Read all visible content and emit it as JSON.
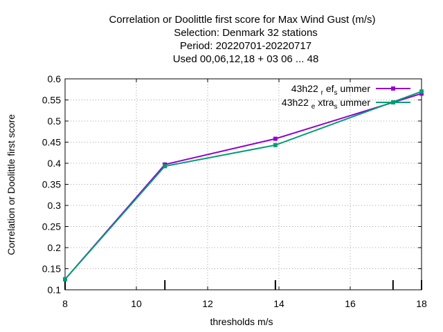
{
  "chart_data": {
    "type": "line",
    "title_lines": [
      "Correlation or Doolittle first score  for Max Wind Gust (m/s)",
      "Selection: Denmark     32 stations",
      "Period: 20220701-20220717",
      "Used  00,06,12,18  + 03 06 ... 48"
    ],
    "xlabel": "thresholds m/s",
    "ylabel": "Correlation or Doolittle first score",
    "xlim": [
      8,
      18
    ],
    "ylim": [
      0.1,
      0.6
    ],
    "x_ticks": [
      "8",
      "10",
      "12",
      "14",
      "16",
      "18"
    ],
    "y_ticks": [
      "0.1",
      "0.15",
      "0.2",
      "0.25",
      "0.3",
      "0.35",
      "0.4",
      "0.45",
      "0.5",
      "0.55",
      "0.6"
    ],
    "grid": true,
    "legend_position": "top-right",
    "threshold_marks": [
      8,
      10.8,
      13.9,
      17.2,
      18
    ],
    "series": [
      {
        "name_main": "43h22",
        "name_parts": [
          [
            "r",
            "ef"
          ],
          [
            "s",
            "ummer"
          ]
        ],
        "color": "#9400d3",
        "x": [
          8,
          10.8,
          13.9,
          18
        ],
        "y": [
          0.125,
          0.397,
          0.458,
          0.565
        ]
      },
      {
        "name_main": "43h22",
        "name_parts": [
          [
            "e",
            "xtra"
          ],
          [
            "s",
            "ummer"
          ]
        ],
        "color": "#009e73",
        "x": [
          8,
          10.8,
          13.9,
          18
        ],
        "y": [
          0.125,
          0.393,
          0.443,
          0.57
        ]
      }
    ]
  }
}
